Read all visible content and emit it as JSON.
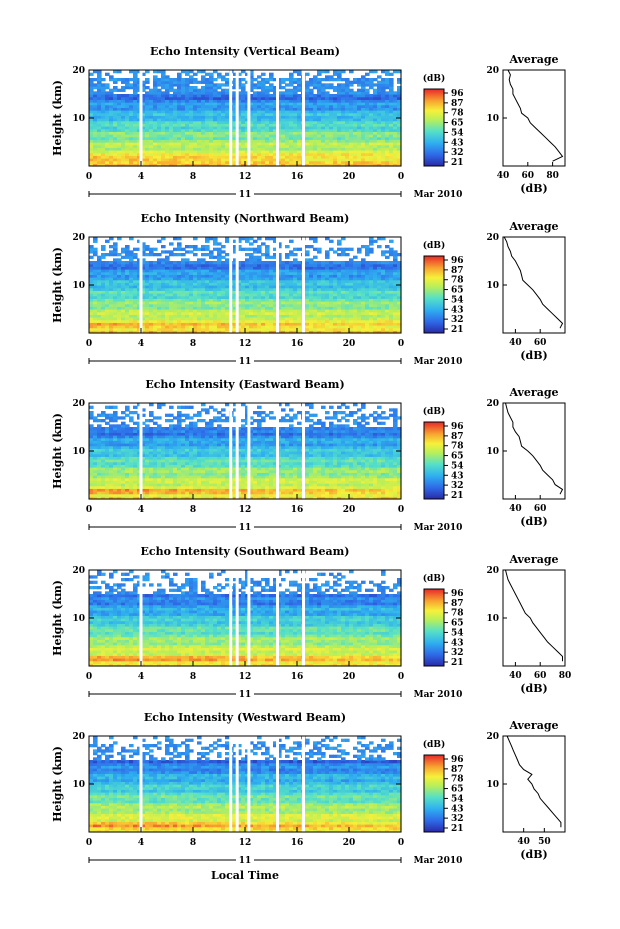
{
  "figure": {
    "xlabel": "Local Time",
    "date_label": "Mar 2010",
    "day_label": "11",
    "colorbar_unit": "(dB)",
    "colorbar_ticks": [
      "96",
      "87",
      "78",
      "65",
      "54",
      "43",
      "32",
      "21"
    ],
    "profile_title": "Average",
    "profile_xlabel": "(dB)",
    "height_label": "Height (km)"
  },
  "chart_data": [
    {
      "type": "heatmap",
      "title": "Echo Intensity (Vertical Beam)",
      "xlabel": "Local Time",
      "ylabel": "Height (km)",
      "x_ticks": [
        "0",
        "4",
        "8",
        "12",
        "16",
        "20",
        "0"
      ],
      "y_ticks": [
        "10",
        "20"
      ],
      "xlim": [
        0,
        24
      ],
      "ylim": [
        0,
        20
      ],
      "colorbar": {
        "unit": "(dB)",
        "ticks": [
          96,
          87,
          78,
          65,
          54,
          43,
          32,
          21
        ]
      },
      "gaps_hours": [
        4.0,
        10.9,
        11.4,
        12.3,
        14.5,
        16.5
      ],
      "profile": {
        "title": "Average",
        "xlabel": "(dB)",
        "x_ticks": [
          "40",
          "60",
          "80"
        ],
        "xlim": [
          40,
          90
        ],
        "height": [
          1,
          2,
          3,
          4,
          5,
          6,
          7,
          8,
          9,
          10,
          11,
          12,
          13,
          14,
          15,
          16,
          17,
          18,
          19,
          20
        ],
        "value": [
          80,
          88,
          85,
          82,
          78,
          74,
          70,
          66,
          62,
          60,
          55,
          54,
          52,
          50,
          48,
          48,
          46,
          45,
          46,
          44
        ]
      }
    },
    {
      "type": "heatmap",
      "title": "Echo Intensity (Northward Beam)",
      "xlabel": "Local Time",
      "ylabel": "Height (km)",
      "x_ticks": [
        "0",
        "4",
        "8",
        "12",
        "16",
        "20",
        "0"
      ],
      "y_ticks": [
        "10",
        "20"
      ],
      "xlim": [
        0,
        24
      ],
      "ylim": [
        0,
        20
      ],
      "colorbar": {
        "unit": "(dB)",
        "ticks": [
          96,
          87,
          78,
          65,
          54,
          43,
          32,
          21
        ]
      },
      "gaps_hours": [
        4.0,
        10.9,
        11.4,
        14.5,
        16.5
      ],
      "profile": {
        "title": "Average",
        "xlabel": "(dB)",
        "x_ticks": [
          "40",
          "60"
        ],
        "xlim": [
          30,
          80
        ],
        "height": [
          1,
          2,
          3,
          4,
          5,
          6,
          7,
          8,
          9,
          10,
          11,
          12,
          13,
          14,
          15,
          16,
          17,
          18,
          19,
          20
        ],
        "value": [
          76,
          78,
          74,
          70,
          66,
          62,
          60,
          57,
          54,
          50,
          46,
          45,
          44,
          42,
          40,
          37,
          36,
          34,
          33,
          31
        ]
      }
    },
    {
      "type": "heatmap",
      "title": "Echo Intensity (Eastward Beam)",
      "xlabel": "Local Time",
      "ylabel": "Height (km)",
      "x_ticks": [
        "0",
        "4",
        "8",
        "12",
        "16",
        "20",
        "0"
      ],
      "y_ticks": [
        "10",
        "20"
      ],
      "xlim": [
        0,
        24
      ],
      "ylim": [
        0,
        20
      ],
      "colorbar": {
        "unit": "(dB)",
        "ticks": [
          96,
          87,
          78,
          65,
          54,
          43,
          32,
          21
        ]
      },
      "gaps_hours": [
        4.0,
        10.9,
        11.4,
        12.3,
        14.5,
        16.5
      ],
      "profile": {
        "title": "Average",
        "xlabel": "(dB)",
        "x_ticks": [
          "40",
          "60"
        ],
        "xlim": [
          30,
          80
        ],
        "height": [
          1,
          2,
          3,
          4,
          5,
          6,
          7,
          8,
          9,
          10,
          11,
          12,
          13,
          14,
          15,
          16,
          17,
          18,
          19,
          20
        ],
        "value": [
          76,
          78,
          72,
          70,
          66,
          62,
          60,
          57,
          54,
          50,
          45,
          44,
          43,
          40,
          38,
          38,
          36,
          34,
          33,
          32
        ]
      }
    },
    {
      "type": "heatmap",
      "title": "Echo Intensity (Southward Beam)",
      "xlabel": "Local Time",
      "ylabel": "Height (km)",
      "x_ticks": [
        "0",
        "4",
        "8",
        "12",
        "16",
        "20",
        "0"
      ],
      "y_ticks": [
        "10",
        "20"
      ],
      "xlim": [
        0,
        24
      ],
      "ylim": [
        0,
        20
      ],
      "colorbar": {
        "unit": "(dB)",
        "ticks": [
          96,
          87,
          78,
          65,
          54,
          43,
          32,
          21
        ]
      },
      "gaps_hours": [
        4.0,
        10.9,
        11.4,
        12.3,
        14.5,
        16.5
      ],
      "profile": {
        "title": "Average",
        "xlabel": "(dB)",
        "x_ticks": [
          "40",
          "60",
          "80"
        ],
        "xlim": [
          30,
          80
        ],
        "height": [
          1,
          2,
          3,
          4,
          5,
          6,
          7,
          8,
          9,
          10,
          11,
          12,
          13,
          14,
          15,
          16,
          17,
          18,
          19,
          20
        ],
        "value": [
          78,
          78,
          74,
          70,
          66,
          63,
          60,
          57,
          54,
          52,
          48,
          46,
          44,
          42,
          40,
          38,
          36,
          34,
          33,
          32
        ]
      }
    },
    {
      "type": "heatmap",
      "title": "Echo Intensity (Westward Beam)",
      "xlabel": "Local Time",
      "ylabel": "Height (km)",
      "x_ticks": [
        "0",
        "4",
        "8",
        "12",
        "16",
        "20",
        "0"
      ],
      "y_ticks": [
        "10",
        "20"
      ],
      "xlim": [
        0,
        24
      ],
      "ylim": [
        0,
        20
      ],
      "colorbar": {
        "unit": "(dB)",
        "ticks": [
          96,
          87,
          78,
          65,
          54,
          43,
          32,
          21
        ]
      },
      "gaps_hours": [
        4.0,
        10.9,
        11.4,
        12.3,
        14.5,
        16.5
      ],
      "profile": {
        "title": "Average",
        "xlabel": "(dB)",
        "x_ticks": [
          "40",
          "50"
        ],
        "xlim": [
          30,
          60
        ],
        "height": [
          1,
          2,
          3,
          4,
          5,
          6,
          7,
          8,
          9,
          10,
          11,
          12,
          13,
          14,
          15,
          16,
          17,
          18,
          19,
          20
        ],
        "value": [
          58,
          58,
          56,
          54,
          52,
          50,
          48,
          47,
          45,
          44,
          42,
          44,
          40,
          38,
          37,
          36,
          35,
          34,
          33,
          32
        ]
      }
    }
  ]
}
